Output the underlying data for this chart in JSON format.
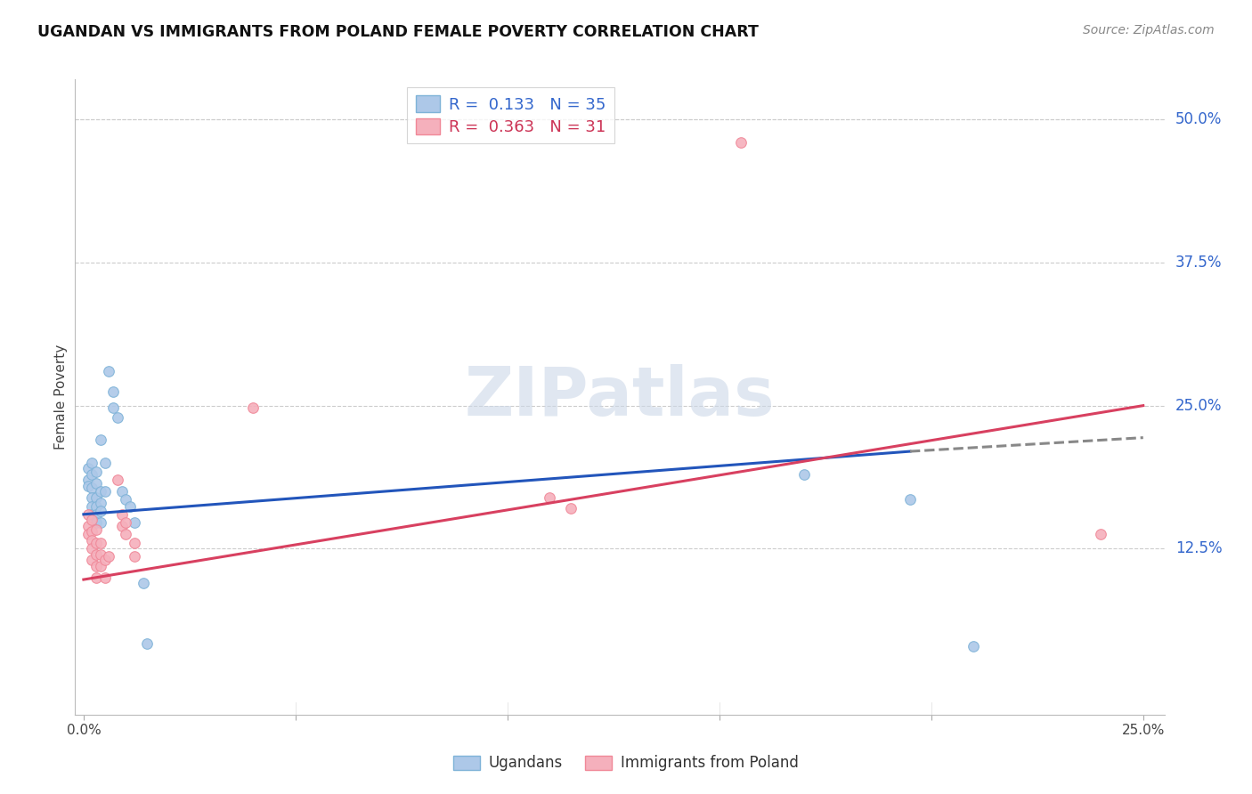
{
  "title": "UGANDAN VS IMMIGRANTS FROM POLAND FEMALE POVERTY CORRELATION CHART",
  "source": "Source: ZipAtlas.com",
  "ylabel": "Female Poverty",
  "xlim": [
    -0.002,
    0.255
  ],
  "ylim": [
    -0.02,
    0.535
  ],
  "xticks": [
    0.0,
    0.05,
    0.1,
    0.15,
    0.2,
    0.25
  ],
  "xtick_labels": [
    "0.0%",
    "",
    "",
    "",
    "",
    "25.0%"
  ],
  "ytick_labels_right": [
    "50.0%",
    "37.5%",
    "25.0%",
    "12.5%"
  ],
  "ytick_positions_right": [
    0.5,
    0.375,
    0.25,
    0.125
  ],
  "ugandan_scatter": [
    [
      0.001,
      0.195
    ],
    [
      0.001,
      0.185
    ],
    [
      0.001,
      0.18
    ],
    [
      0.002,
      0.2
    ],
    [
      0.002,
      0.19
    ],
    [
      0.002,
      0.178
    ],
    [
      0.002,
      0.17
    ],
    [
      0.002,
      0.162
    ],
    [
      0.002,
      0.155
    ],
    [
      0.003,
      0.192
    ],
    [
      0.003,
      0.182
    ],
    [
      0.003,
      0.17
    ],
    [
      0.003,
      0.162
    ],
    [
      0.003,
      0.155
    ],
    [
      0.003,
      0.148
    ],
    [
      0.004,
      0.22
    ],
    [
      0.004,
      0.175
    ],
    [
      0.004,
      0.165
    ],
    [
      0.004,
      0.158
    ],
    [
      0.004,
      0.148
    ],
    [
      0.005,
      0.2
    ],
    [
      0.005,
      0.175
    ],
    [
      0.006,
      0.28
    ],
    [
      0.007,
      0.262
    ],
    [
      0.007,
      0.248
    ],
    [
      0.008,
      0.24
    ],
    [
      0.009,
      0.175
    ],
    [
      0.01,
      0.168
    ],
    [
      0.011,
      0.162
    ],
    [
      0.012,
      0.148
    ],
    [
      0.014,
      0.095
    ],
    [
      0.015,
      0.042
    ],
    [
      0.17,
      0.19
    ],
    [
      0.195,
      0.168
    ],
    [
      0.21,
      0.04
    ]
  ],
  "poland_scatter": [
    [
      0.001,
      0.155
    ],
    [
      0.001,
      0.145
    ],
    [
      0.001,
      0.138
    ],
    [
      0.002,
      0.15
    ],
    [
      0.002,
      0.14
    ],
    [
      0.002,
      0.132
    ],
    [
      0.002,
      0.125
    ],
    [
      0.002,
      0.115
    ],
    [
      0.003,
      0.142
    ],
    [
      0.003,
      0.13
    ],
    [
      0.003,
      0.12
    ],
    [
      0.003,
      0.11
    ],
    [
      0.003,
      0.1
    ],
    [
      0.004,
      0.13
    ],
    [
      0.004,
      0.12
    ],
    [
      0.004,
      0.11
    ],
    [
      0.005,
      0.115
    ],
    [
      0.005,
      0.1
    ],
    [
      0.006,
      0.118
    ],
    [
      0.008,
      0.185
    ],
    [
      0.009,
      0.155
    ],
    [
      0.009,
      0.145
    ],
    [
      0.01,
      0.148
    ],
    [
      0.01,
      0.138
    ],
    [
      0.012,
      0.13
    ],
    [
      0.012,
      0.118
    ],
    [
      0.04,
      0.248
    ],
    [
      0.11,
      0.17
    ],
    [
      0.115,
      0.16
    ],
    [
      0.155,
      0.48
    ],
    [
      0.24,
      0.138
    ]
  ],
  "ugandan_trendline_solid": {
    "x_start": 0.0,
    "y_start": 0.155,
    "x_end": 0.195,
    "y_end": 0.21
  },
  "ugandan_trendline_dash": {
    "x_start": 0.195,
    "y_start": 0.21,
    "x_end": 0.25,
    "y_end": 0.222
  },
  "poland_trendline": {
    "x_start": 0.0,
    "y_start": 0.098,
    "x_end": 0.25,
    "y_end": 0.25
  },
  "ugandan_color": "#7fb3d8",
  "poland_color": "#f08898",
  "ugandan_fill": "#adc8e8",
  "poland_fill": "#f5b0bc",
  "scatter_size": 70,
  "trendline_blue": "#2255bb",
  "trendline_pink": "#d84060",
  "watermark_text": "ZIPatlas",
  "watermark_color": "#ccd8e8",
  "background_color": "#ffffff",
  "grid_color": "#cccccc",
  "legend_r1": "R =  0.133   N = 35",
  "legend_r2": "R =  0.363   N = 31",
  "legend_color1": "#3366cc",
  "legend_color2": "#cc3355"
}
